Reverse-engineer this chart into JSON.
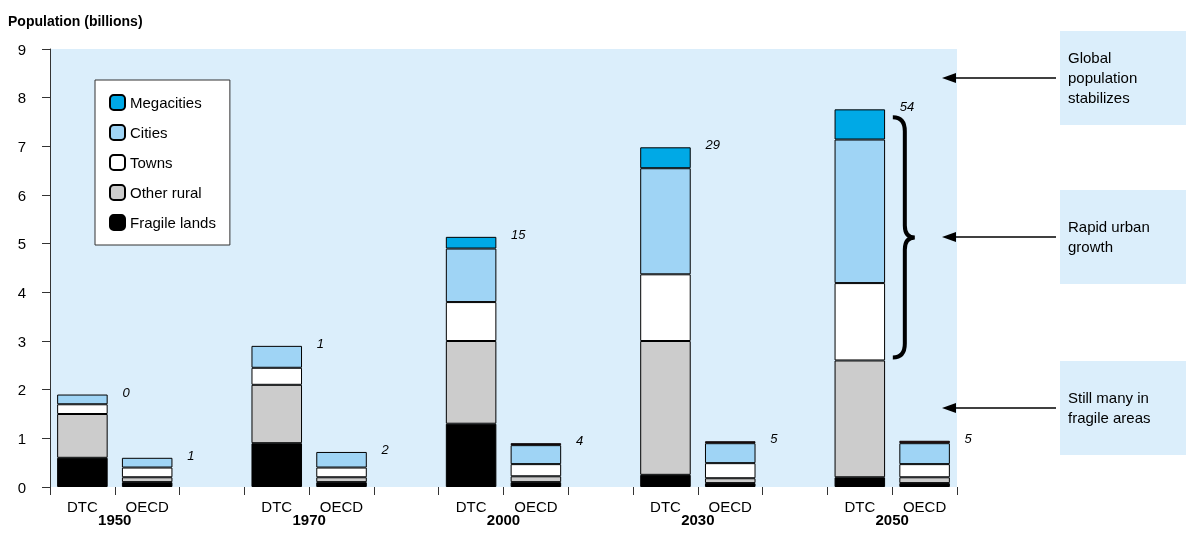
{
  "chart_data": {
    "type": "bar",
    "stacked": true,
    "ylabel": "Population (billions)",
    "categories": [
      "DTC",
      "OECD",
      null,
      "DTC",
      "OECD",
      null,
      "DTC",
      "OECD",
      null,
      "DTC",
      "OECD",
      null,
      "DTC",
      "OECD"
    ],
    "series": [
      {
        "name": "Fragile lands",
        "color": "#000000",
        "values": [
          0.6,
          0.1,
          null,
          0.9,
          0.1,
          null,
          1.3,
          0.1,
          null,
          0.25,
          0.08,
          null,
          0.2,
          0.08
        ]
      },
      {
        "name": "Other rural",
        "color": "#cccccc",
        "values": [
          0.9,
          0.1,
          null,
          1.2,
          0.1,
          null,
          1.7,
          0.12,
          null,
          2.75,
          0.1,
          null,
          2.4,
          0.12
        ]
      },
      {
        "name": "Towns",
        "color": "#ffffff",
        "values": [
          0.2,
          0.2,
          null,
          0.35,
          0.2,
          null,
          0.8,
          0.25,
          null,
          1.37,
          0.31,
          null,
          1.59,
          0.27
        ]
      },
      {
        "name": "Cities",
        "color": "#9fd4f5",
        "values": [
          0.2,
          0.2,
          null,
          0.45,
          0.32,
          null,
          1.1,
          0.39,
          null,
          2.18,
          0.41,
          null,
          2.95,
          0.43
        ]
      },
      {
        "name": "Megacities",
        "color": "#00a9e6",
        "colors": [
          null,
          null,
          null,
          null,
          null,
          null,
          "#00a9e6",
          "#8b1a1a",
          null,
          "#00a9e6",
          "#8b1a1a",
          null,
          "#00a9e6",
          "#8b1a1a"
        ],
        "values": [
          null,
          null,
          null,
          null,
          null,
          null,
          0.24,
          0.04,
          null,
          0.43,
          0.04,
          null,
          0.62,
          0.05
        ]
      }
    ],
    "ylim": [
      0,
      9
    ],
    "yticks": [
      0,
      1,
      2,
      3,
      4,
      5,
      6,
      7,
      8,
      9
    ],
    "grid": false,
    "legend": "top left",
    "annotations": [
      "1950",
      "1970",
      "2000",
      "2030",
      "2050",
      "0",
      "1",
      "1",
      "2",
      "15",
      "4",
      "29",
      "5",
      "54",
      "5",
      "Global population stabilizes",
      "Rapid urban growth",
      "Still many in fragile areas"
    ]
  }
}
